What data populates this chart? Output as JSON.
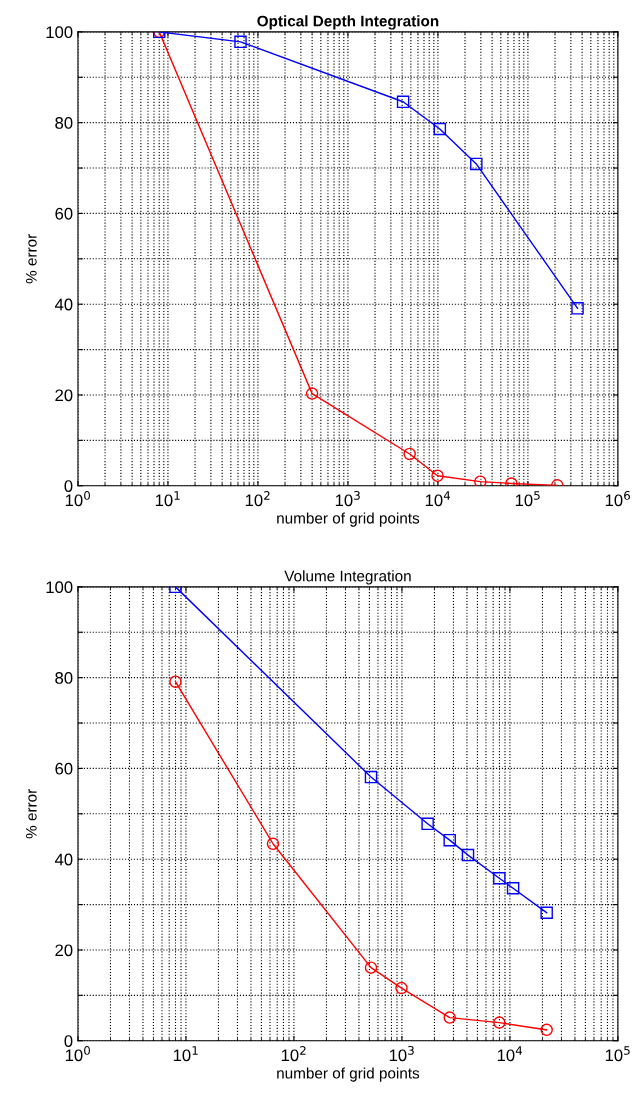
{
  "chart_data": [
    {
      "type": "line",
      "title": "Optical Depth Integration",
      "xlabel": "number of grid points",
      "ylabel": "% error",
      "log": "x",
      "grid": true,
      "legend": false,
      "xlim": [
        1,
        1000000
      ],
      "xticks": [
        {
          "value": 1,
          "label": "10$^{0}$"
        },
        {
          "value": 10,
          "label": "10$^{1}$"
        },
        {
          "value": 100,
          "label": "10$^{2}$"
        },
        {
          "value": 1000,
          "label": "10$^{3}$"
        },
        {
          "value": 10000,
          "label": "10$^{4}$"
        },
        {
          "value": 100000,
          "label": "10$^{5}$"
        },
        {
          "value": 1000000,
          "label": "10$^{6}$"
        }
      ],
      "ylim": [
        0,
        100
      ],
      "yticks": [
        0,
        {
          "value": 10,
          "label": null
        },
        20,
        {
          "value": 30,
          "label": null
        },
        40,
        {
          "value": 50,
          "label": null
        },
        60,
        {
          "value": 70,
          "label": null
        },
        80,
        {
          "value": 90,
          "label": null
        },
        100
      ],
      "series": [
        {
          "color": "#0000ff",
          "marker": "square",
          "x": [
            8,
            64,
            4100,
            10500,
            26700,
            356000
          ],
          "values": [
            100,
            97.8,
            84.6,
            78.6,
            70.9,
            39.1
          ]
        },
        {
          "color": "#ff0000",
          "marker": "circle",
          "x": [
            8,
            400,
            4850,
            9900,
            29600,
            65500,
            212000
          ],
          "values": [
            100,
            20.3,
            7.0,
            2.2,
            0.9,
            0.5,
            0.1
          ]
        }
      ]
    },
    {
      "type": "line",
      "title": "Volume Integration",
      "xlabel": "number of grid points",
      "ylabel": "% error",
      "log": "x",
      "grid": true,
      "legend": false,
      "xlim": [
        1,
        100000
      ],
      "xticks": [
        {
          "value": 1,
          "label": "10$^{0}$"
        },
        {
          "value": 10,
          "label": "10$^{1}$"
        },
        {
          "value": 100,
          "label": "10$^{2}$"
        },
        {
          "value": 1000,
          "label": "10$^{3}$"
        },
        {
          "value": 10000,
          "label": "10$^{4}$"
        },
        {
          "value": 100000,
          "label": "10$^{5}$"
        }
      ],
      "ylim": [
        0,
        100
      ],
      "yticks": [
        0,
        {
          "value": 10,
          "label": null
        },
        20,
        {
          "value": 30,
          "label": null
        },
        40,
        {
          "value": 50,
          "label": null
        },
        60,
        {
          "value": 70,
          "label": null
        },
        80,
        {
          "value": 90,
          "label": null
        },
        100
      ],
      "series": [
        {
          "color": "#0000ff",
          "marker": "square",
          "x": [
            8,
            517,
            1730,
            2770,
            4090,
            7980,
            10700,
            21900
          ],
          "values": [
            100,
            58.1,
            47.8,
            44.2,
            40.9,
            35.8,
            33.6,
            28.2
          ]
        },
        {
          "color": "#ff0000",
          "marker": "circle",
          "x": [
            8,
            64,
            517,
            991,
            2770,
            7980,
            21900
          ],
          "values": [
            79.1,
            43.4,
            16.1,
            11.6,
            5.1,
            4.0,
            2.4
          ]
        }
      ]
    }
  ]
}
